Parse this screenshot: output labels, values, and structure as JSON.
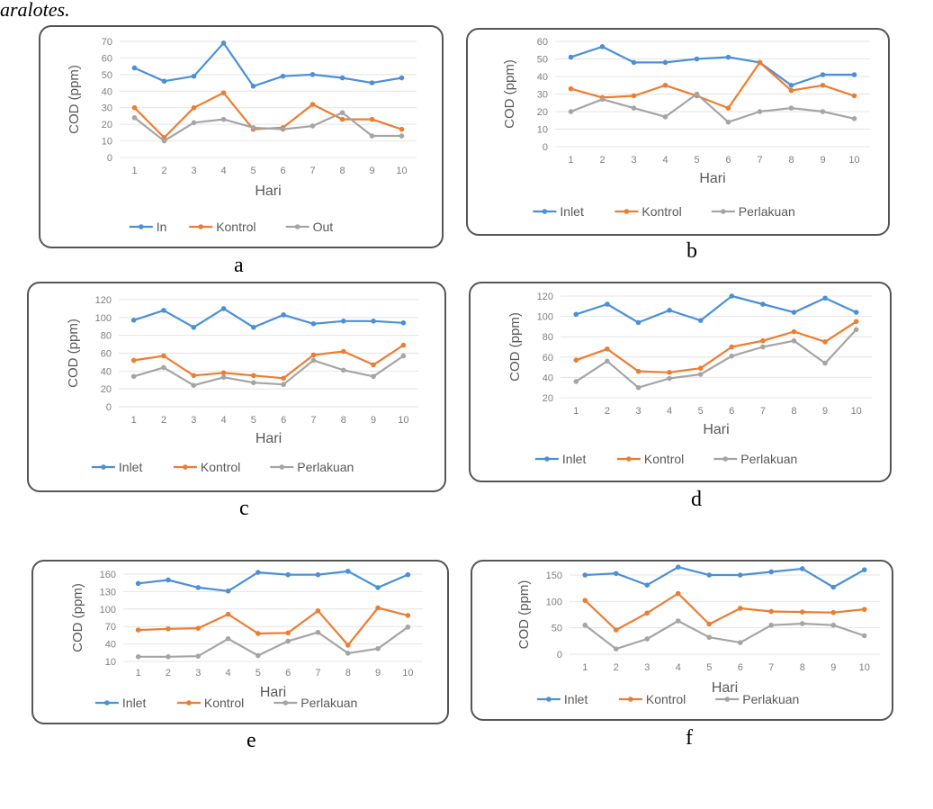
{
  "header": {
    "text": "aralotes."
  },
  "colors": {
    "inlet": "#4a90d9",
    "kontrol": "#ed7d31",
    "perlakuan": "#a5a5a5",
    "grid": "#e4e4e4",
    "tick": "#7f7f7f"
  },
  "chart_data": [
    {
      "panel": "a",
      "caption": "a",
      "type": "line",
      "xlabel": "Hari",
      "ylabel": "COD (ppm)",
      "categories": [
        "1",
        "2",
        "3",
        "4",
        "5",
        "6",
        "7",
        "8",
        "9",
        "10"
      ],
      "ylim": [
        0,
        70
      ],
      "yticks": [
        0,
        10,
        20,
        30,
        40,
        50,
        60,
        70
      ],
      "series": [
        {
          "name": "In",
          "values": [
            54,
            46,
            49,
            69,
            43,
            49,
            50,
            48,
            45,
            48
          ]
        },
        {
          "name": "Kontrol",
          "values": [
            30,
            12,
            30,
            39,
            17,
            18,
            32,
            23,
            23,
            17
          ]
        },
        {
          "name": "Out",
          "values": [
            24,
            10,
            21,
            23,
            18,
            17,
            19,
            27,
            13,
            13
          ]
        }
      ]
    },
    {
      "panel": "b",
      "caption": "b",
      "type": "line",
      "xlabel": "Hari",
      "ylabel": "COD (ppm)",
      "categories": [
        "1",
        "2",
        "3",
        "4",
        "5",
        "6",
        "7",
        "8",
        "9",
        "10"
      ],
      "ylim": [
        0,
        60
      ],
      "yticks": [
        0,
        10,
        20,
        30,
        40,
        50,
        60
      ],
      "series": [
        {
          "name": "Inlet",
          "values": [
            51,
            57,
            48,
            48,
            50,
            51,
            48,
            35,
            41,
            41
          ]
        },
        {
          "name": "Kontrol",
          "values": [
            33,
            28,
            29,
            35,
            29,
            22,
            48,
            32,
            35,
            29
          ]
        },
        {
          "name": "Perlakuan",
          "values": [
            20,
            27,
            22,
            17,
            30,
            14,
            20,
            22,
            20,
            16
          ]
        }
      ]
    },
    {
      "panel": "c",
      "caption": "c",
      "type": "line",
      "xlabel": "Hari",
      "ylabel": "COD (ppm)",
      "categories": [
        "1",
        "2",
        "3",
        "4",
        "5",
        "6",
        "7",
        "8",
        "9",
        "10"
      ],
      "ylim": [
        0,
        120
      ],
      "yticks": [
        0,
        20,
        40,
        60,
        80,
        100,
        120
      ],
      "series": [
        {
          "name": "Inlet",
          "values": [
            97,
            108,
            89,
            110,
            89,
            103,
            93,
            96,
            96,
            94
          ]
        },
        {
          "name": "Kontrol",
          "values": [
            52,
            57,
            35,
            38,
            35,
            32,
            58,
            62,
            47,
            69
          ]
        },
        {
          "name": "Perlakuan",
          "values": [
            34,
            44,
            24,
            33,
            27,
            25,
            52,
            41,
            34,
            57
          ]
        }
      ]
    },
    {
      "panel": "d",
      "caption": "d",
      "type": "line",
      "xlabel": "Hari",
      "ylabel": "COD (ppm)",
      "categories": [
        "1",
        "2",
        "3",
        "4",
        "5",
        "6",
        "7",
        "8",
        "9",
        "10"
      ],
      "ylim": [
        20,
        120
      ],
      "yticks": [
        20,
        40,
        60,
        80,
        100,
        120
      ],
      "series": [
        {
          "name": "Inlet",
          "values": [
            102,
            112,
            94,
            106,
            96,
            120,
            112,
            104,
            118,
            104
          ]
        },
        {
          "name": "Kontrol",
          "values": [
            57,
            68,
            46,
            45,
            49,
            70,
            76,
            85,
            75,
            95
          ]
        },
        {
          "name": "Perlakuan",
          "values": [
            36,
            56,
            30,
            39,
            43,
            61,
            70,
            76,
            54,
            87
          ]
        }
      ]
    },
    {
      "panel": "e",
      "caption": "e",
      "type": "line",
      "xlabel": "Hari",
      "ylabel": "COD (ppm)",
      "categories": [
        "1",
        "2",
        "3",
        "4",
        "5",
        "6",
        "7",
        "8",
        "9",
        "10"
      ],
      "ylim": [
        10,
        160
      ],
      "yticks": [
        10,
        40,
        70,
        100,
        130,
        160
      ],
      "series": [
        {
          "name": "Inlet",
          "values": [
            144,
            150,
            137,
            131,
            163,
            159,
            159,
            165,
            137,
            159
          ]
        },
        {
          "name": "Kontrol",
          "values": [
            64,
            66,
            67,
            91,
            58,
            59,
            97,
            38,
            102,
            89
          ]
        },
        {
          "name": "Perlakuan",
          "values": [
            18,
            18,
            19,
            49,
            20,
            45,
            60,
            24,
            32,
            69
          ]
        }
      ]
    },
    {
      "panel": "f",
      "caption": "f",
      "type": "line",
      "xlabel": "Hari",
      "ylabel": "COD (ppm)",
      "categories": [
        "1",
        "2",
        "3",
        "4",
        "5",
        "6",
        "7",
        "8",
        "9",
        "10"
      ],
      "ylim": [
        0,
        150
      ],
      "yticks": [
        0,
        50,
        100,
        150
      ],
      "series": [
        {
          "name": "Inlet",
          "values": [
            150,
            153,
            131,
            165,
            150,
            150,
            156,
            162,
            127,
            160
          ]
        },
        {
          "name": "Kontrol",
          "values": [
            102,
            46,
            78,
            115,
            57,
            87,
            81,
            80,
            79,
            85
          ]
        },
        {
          "name": "Perlakuan",
          "values": [
            55,
            10,
            29,
            63,
            32,
            22,
            55,
            58,
            55,
            35
          ]
        }
      ]
    }
  ]
}
